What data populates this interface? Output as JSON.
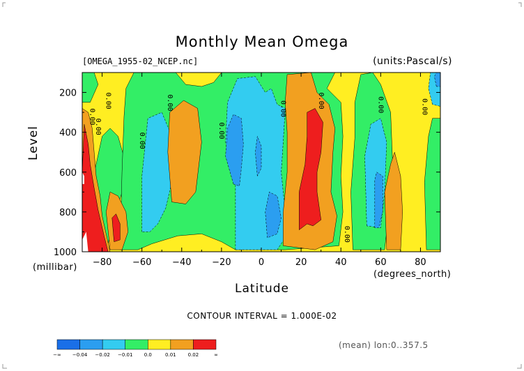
{
  "chart_data": {
    "type": "heatmap",
    "title": "Monthly Mean Omega",
    "source_label": "[OMEGA_1955-02_NCEP.nc]",
    "units_label": "(units:Pascal/s)",
    "xlabel": "Latitude",
    "x_unit_label": "(degrees_north)",
    "ylabel": "Level",
    "y_unit_label": "(millibar)",
    "xlim": [
      -90,
      90
    ],
    "ylim": [
      1000,
      100
    ],
    "x_ticks": [
      -80,
      -60,
      -40,
      -20,
      0,
      20,
      40,
      60,
      80
    ],
    "y_ticks": [
      200,
      400,
      600,
      800,
      1000
    ],
    "contour_interval_text": "CONTOUR INTERVAL = 1.000E-02",
    "mean_text": "(mean) lon:0..357.5",
    "contour_label": "0.00",
    "colorbar": {
      "colors": [
        "#1a6fe8",
        "#2b9ef0",
        "#33ccf0",
        "#33ee66",
        "#ffee22",
        "#f2a020",
        "#ee1e1e"
      ],
      "labels": [
        "-∞",
        "-0.04",
        "-0.02",
        "-0.01",
        "0.0",
        "0.01",
        "0.02",
        "∞"
      ]
    },
    "regions": [
      {
        "name": "lightblue-mid",
        "level": 2,
        "points": [
          [
            -13,
            990
          ],
          [
            -13,
            600
          ],
          [
            -18,
            450
          ],
          [
            -17,
            250
          ],
          [
            -12,
            130
          ],
          [
            -3,
            120
          ],
          [
            2,
            200
          ],
          [
            5,
            180
          ],
          [
            8,
            260
          ],
          [
            12,
            280
          ],
          [
            11,
            450
          ],
          [
            10,
            600
          ],
          [
            12,
            800
          ],
          [
            12,
            930
          ],
          [
            8,
            990
          ]
        ]
      },
      {
        "name": "lightblue-sh",
        "level": 2,
        "points": [
          [
            -60,
            900
          ],
          [
            -60,
            620
          ],
          [
            -57,
            330
          ],
          [
            -50,
            300
          ],
          [
            -45,
            420
          ],
          [
            -45,
            650
          ],
          [
            -48,
            780
          ],
          [
            -52,
            860
          ],
          [
            -56,
            900
          ]
        ]
      },
      {
        "name": "lightblue-nh",
        "level": 2,
        "points": [
          [
            53,
            870
          ],
          [
            52,
            520
          ],
          [
            55,
            360
          ],
          [
            60,
            330
          ],
          [
            63,
            450
          ],
          [
            62,
            700
          ],
          [
            60,
            880
          ]
        ]
      },
      {
        "name": "lightblue-tr",
        "level": 2,
        "points": [
          [
            86,
            260
          ],
          [
            84,
            180
          ],
          [
            85,
            100
          ],
          [
            90,
            100
          ],
          [
            90,
            270
          ]
        ]
      },
      {
        "name": "blue-a",
        "level": 1,
        "points": [
          [
            -14,
            660
          ],
          [
            -18,
            520
          ],
          [
            -17,
            380
          ],
          [
            -14,
            310
          ],
          [
            -10,
            330
          ],
          [
            -9,
            460
          ],
          [
            -10,
            580
          ],
          [
            -11,
            670
          ]
        ]
      },
      {
        "name": "blue-b",
        "level": 1,
        "points": [
          [
            3,
            930
          ],
          [
            2,
            800
          ],
          [
            4,
            700
          ],
          [
            8,
            720
          ],
          [
            10,
            830
          ],
          [
            8,
            910
          ]
        ]
      },
      {
        "name": "blue-c",
        "level": 1,
        "points": [
          [
            -2,
            620
          ],
          [
            -3,
            500
          ],
          [
            -2,
            420
          ],
          [
            0,
            470
          ],
          [
            0,
            580
          ]
        ]
      },
      {
        "name": "blue-d",
        "level": 1,
        "points": [
          [
            57,
            880
          ],
          [
            57,
            640
          ],
          [
            58,
            600
          ],
          [
            61,
            620
          ],
          [
            61,
            800
          ],
          [
            59,
            880
          ]
        ]
      },
      {
        "name": "blue-e",
        "level": 1,
        "points": [
          [
            88,
            170
          ],
          [
            87,
            120
          ],
          [
            88,
            100
          ],
          [
            90,
            100
          ],
          [
            90,
            170
          ]
        ]
      },
      {
        "name": "orange-eq",
        "level": 5,
        "points": [
          [
            11,
            970
          ],
          [
            11,
            800
          ],
          [
            13,
            600
          ],
          [
            13,
            400
          ],
          [
            12,
            250
          ],
          [
            13,
            110
          ],
          [
            25,
            100
          ],
          [
            28,
            200
          ],
          [
            34,
            260
          ],
          [
            37,
            380
          ],
          [
            36,
            500
          ],
          [
            35,
            700
          ],
          [
            38,
            820
          ],
          [
            36,
            950
          ],
          [
            27,
            990
          ]
        ]
      },
      {
        "name": "orange-sh",
        "level": 5,
        "points": [
          [
            -45,
            750
          ],
          [
            -47,
            500
          ],
          [
            -46,
            300
          ],
          [
            -39,
            240
          ],
          [
            -32,
            280
          ],
          [
            -30,
            450
          ],
          [
            -33,
            700
          ],
          [
            -38,
            760
          ]
        ]
      },
      {
        "name": "orange-nh",
        "level": 5,
        "points": [
          [
            63,
            990
          ],
          [
            62,
            700
          ],
          [
            65,
            560
          ],
          [
            67,
            500
          ],
          [
            70,
            620
          ],
          [
            71,
            800
          ],
          [
            70,
            990
          ]
        ]
      },
      {
        "name": "orange-sp",
        "level": 5,
        "points": [
          [
            -76,
            990
          ],
          [
            -78,
            800
          ],
          [
            -76,
            700
          ],
          [
            -72,
            720
          ],
          [
            -68,
            800
          ],
          [
            -67,
            900
          ],
          [
            -70,
            990
          ]
        ]
      },
      {
        "name": "orange-ant",
        "level": 5,
        "points": [
          [
            -90,
            1000
          ],
          [
            -90,
            280
          ],
          [
            -87,
            300
          ],
          [
            -85,
            380
          ],
          [
            -84,
            500
          ],
          [
            -83,
            620
          ],
          [
            -81,
            720
          ],
          [
            -80,
            820
          ],
          [
            -76,
            1000
          ]
        ]
      },
      {
        "name": "red-eq",
        "level": 6,
        "points": [
          [
            19,
            890
          ],
          [
            19,
            700
          ],
          [
            22,
            560
          ],
          [
            23,
            420
          ],
          [
            23,
            300
          ],
          [
            27,
            280
          ],
          [
            31,
            350
          ],
          [
            30,
            500
          ],
          [
            28,
            600
          ],
          [
            28,
            700
          ],
          [
            30,
            840
          ],
          [
            26,
            870
          ],
          [
            23,
            860
          ]
        ]
      },
      {
        "name": "red-sp",
        "level": 6,
        "points": [
          [
            -74,
            950
          ],
          [
            -75,
            830
          ],
          [
            -73,
            810
          ],
          [
            -71,
            860
          ],
          [
            -71,
            940
          ]
        ]
      },
      {
        "name": "red-ant",
        "level": 6,
        "points": [
          [
            -90,
            1000
          ],
          [
            -90,
            600
          ],
          [
            -89,
            360
          ],
          [
            -87,
            460
          ],
          [
            -86,
            560
          ],
          [
            -84,
            680
          ],
          [
            -82,
            790
          ],
          [
            -79,
            920
          ],
          [
            -77,
            1000
          ]
        ]
      }
    ],
    "missing_regions": [
      [
        [
          -90,
          1000
        ],
        [
          -90,
          940
        ],
        [
          -88,
          900
        ],
        [
          -87,
          1000
        ]
      ],
      [
        [
          -90,
          660
        ],
        [
          -90,
          600
        ],
        [
          -89,
          620
        ],
        [
          -89,
          660
        ]
      ]
    ]
  }
}
